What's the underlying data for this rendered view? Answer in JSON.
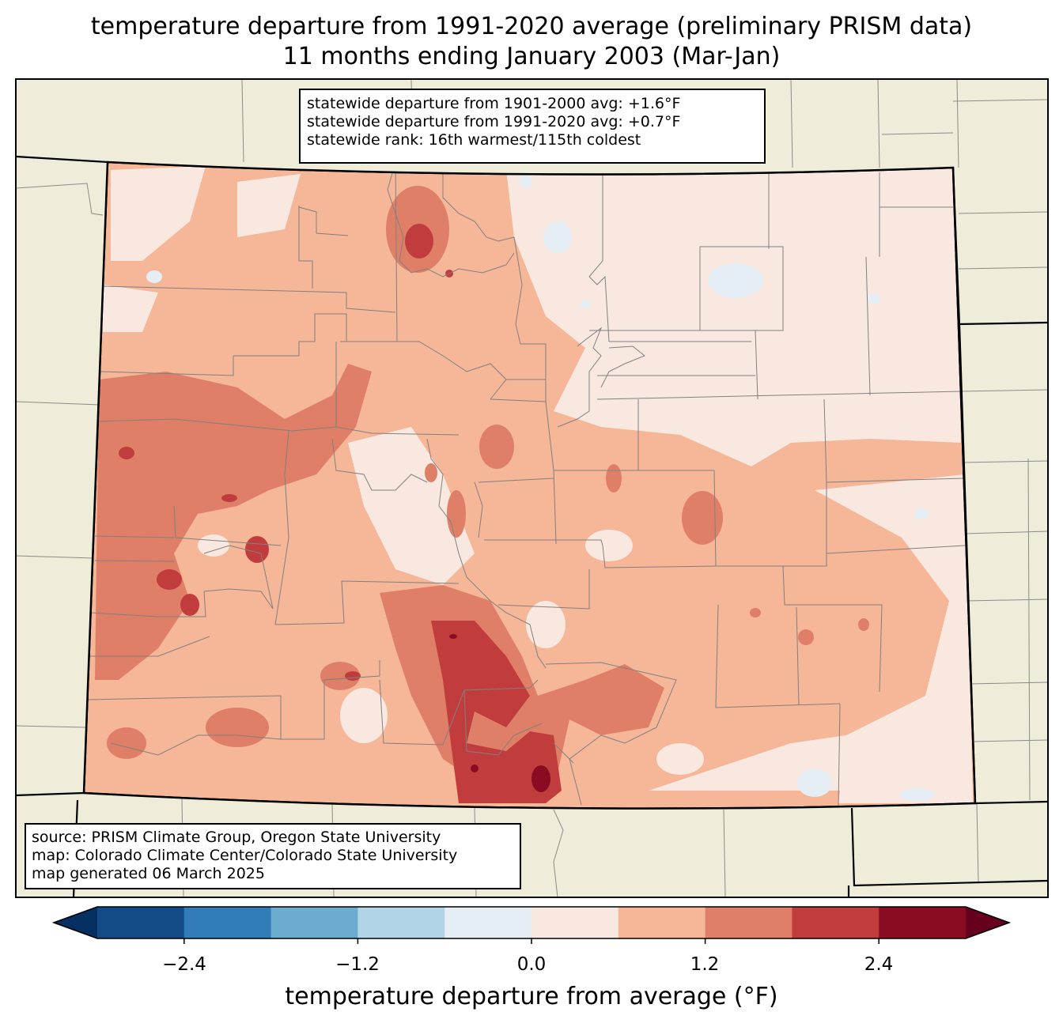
{
  "title": {
    "line1": "temperature departure from 1991-2020 average (preliminary PRISM data)",
    "line2": "11 months ending January 2003 (Mar-Jan)"
  },
  "stats_box": {
    "line1": "statewide departure from 1901-2000 avg: +1.6°F",
    "line2": "statewide departure from 1991-2020 avg: +0.7°F",
    "line3": "statewide rank: 16th warmest/115th coldest"
  },
  "source_box": {
    "line1": "source: PRISM Climate Group, Oregon State University",
    "line2": "map: Colorado Climate Center/Colorado State University",
    "line3": "map generated 06 March 2025"
  },
  "colorbar": {
    "title": "temperature departure from average (°F)",
    "ticks": [
      "−2.4",
      "−1.2",
      "0.0",
      "1.2",
      "2.4"
    ],
    "bins": [
      {
        "range": "< -3.0",
        "color": "#053061"
      },
      {
        "range": "-3.0 to -2.4",
        "color": "#134b87"
      },
      {
        "range": "-2.4 to -1.8",
        "color": "#327db7"
      },
      {
        "range": "-1.8 to -1.2",
        "color": "#6dacd1"
      },
      {
        "range": "-1.2 to -0.6",
        "color": "#b1d5e7"
      },
      {
        "range": "-0.6 to 0.0",
        "color": "#e5eef4"
      },
      {
        "range": "0.0 to 0.6",
        "color": "#f9e8df"
      },
      {
        "range": "0.6 to 1.2",
        "color": "#f6b698"
      },
      {
        "range": "1.2 to 1.8",
        "color": "#e07f67"
      },
      {
        "range": "1.8 to 2.4",
        "color": "#c13d3d"
      },
      {
        "range": "2.4 to 3.0",
        "color": "#8a0c23"
      },
      {
        "range": "> 3.0",
        "color": "#67001f"
      }
    ]
  },
  "colors": {
    "land_background": "#efedda",
    "base_state_fill": "#f6b698",
    "border": "#000000",
    "county_lines": "#808080"
  }
}
